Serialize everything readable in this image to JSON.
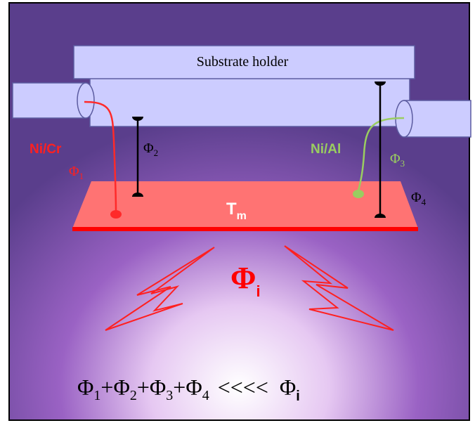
{
  "holder_label": "Substrate holder",
  "left_wire": {
    "material": "Ni/Cr",
    "flux": {
      "base": "Φ",
      "sub": "1"
    }
  },
  "left_probe": {
    "flux": {
      "base": "Φ",
      "sub": "2"
    }
  },
  "right_wire": {
    "material": "Ni/Al",
    "flux": {
      "base": "Φ",
      "sub": "3"
    }
  },
  "right_probe": {
    "flux": {
      "base": "Φ",
      "sub": "4"
    }
  },
  "plate": {
    "base": "T",
    "sub": "m"
  },
  "incident": {
    "base": "Φ",
    "sub": "i"
  },
  "equation": {
    "terms": [
      {
        "base": "Φ",
        "sub": "1"
      },
      {
        "base": "Φ",
        "sub": "2"
      },
      {
        "base": "Φ",
        "sub": "3"
      },
      {
        "base": "Φ",
        "sub": "4"
      }
    ],
    "operator": "+",
    "relation": "<<<<",
    "rhs": {
      "base": "Φ",
      "sub": "i"
    }
  }
}
